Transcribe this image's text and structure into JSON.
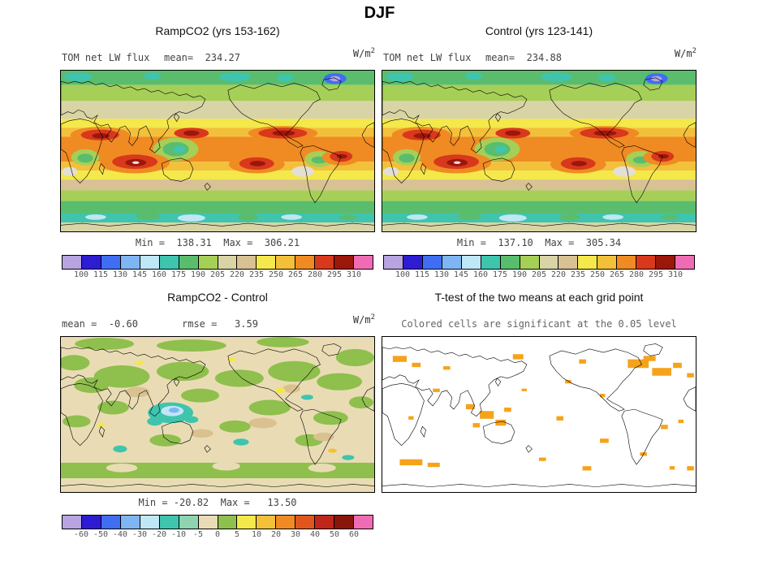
{
  "figure": {
    "title": "DJF",
    "units_base": "W/m",
    "units_exp": "2"
  },
  "panels": {
    "ramp": {
      "title": "RampCO2 (yrs 153-162)",
      "field_label": "TOM net LW flux",
      "mean_label": "mean=  234.27",
      "minmax": "Min =  138.31  Max =  306.21",
      "colorbar": {
        "labels": [
          "100",
          "115",
          "130",
          "145",
          "160",
          "175",
          "190",
          "205",
          "220",
          "235",
          "250",
          "265",
          "280",
          "295",
          "310"
        ],
        "colors": [
          "#b7a4e0",
          "#2d1cd1",
          "#3f6ef2",
          "#7fb5f2",
          "#bfe7f5",
          "#3fc4ae",
          "#5abd6e",
          "#a6cf58",
          "#d9d4a5",
          "#d8c193",
          "#f4e84a",
          "#f3c03a",
          "#ef8b22",
          "#d8381b",
          "#9a170a",
          "#ef6cb4"
        ]
      }
    },
    "control": {
      "title": "Control (yrs 123-141)",
      "field_label": "TOM net LW flux",
      "mean_label": "mean=  234.88",
      "minmax": "Min =  137.10  Max =  305.34",
      "colorbar": {
        "labels": [
          "100",
          "115",
          "130",
          "145",
          "160",
          "175",
          "190",
          "205",
          "220",
          "235",
          "250",
          "265",
          "280",
          "295",
          "310"
        ],
        "colors": [
          "#b7a4e0",
          "#2d1cd1",
          "#3f6ef2",
          "#7fb5f2",
          "#bfe7f5",
          "#3fc4ae",
          "#5abd6e",
          "#a6cf58",
          "#d9d4a5",
          "#d8c193",
          "#f4e84a",
          "#f3c03a",
          "#ef8b22",
          "#d8381b",
          "#9a170a",
          "#ef6cb4"
        ]
      }
    },
    "diff": {
      "title": "RampCO2 - Control",
      "mean_label": "mean =  -0.60",
      "rmse_label": "rmse =   3.59",
      "minmax": "Min = -20.82  Max =   13.50",
      "colorbar": {
        "labels": [
          "-60",
          "-50",
          "-40",
          "-30",
          "-20",
          "-10",
          "-5",
          "0",
          "5",
          "10",
          "20",
          "30",
          "40",
          "50",
          "60"
        ],
        "colors": [
          "#b7a4e0",
          "#2d1cd1",
          "#3f6ef2",
          "#7fb5f2",
          "#bfe7f5",
          "#3fc4ae",
          "#8fd4b0",
          "#e9dcb4",
          "#8fbf4d",
          "#f4e84a",
          "#f3c03a",
          "#ef8b22",
          "#e0561e",
          "#c0271a",
          "#8a150b",
          "#ef6cb4"
        ]
      }
    },
    "ttest": {
      "title": "T-test of the two means at each grid point",
      "subtitle": "Colored cells are significant at the 0.05 level",
      "significant_color": "#f5a31b"
    }
  },
  "chart_data": [
    {
      "type": "heatmap",
      "subtype": "global-latlon-map",
      "season": "DJF",
      "title": "RampCO2 (yrs 153-162)",
      "variable": "TOM net LW flux",
      "units": "W/m^2",
      "mean": 234.27,
      "min": 138.31,
      "max": 306.21,
      "levels": [
        100,
        115,
        130,
        145,
        160,
        175,
        190,
        205,
        220,
        235,
        250,
        265,
        280,
        295,
        310
      ],
      "palette": [
        "#b7a4e0",
        "#2d1cd1",
        "#3f6ef2",
        "#7fb5f2",
        "#bfe7f5",
        "#3fc4ae",
        "#5abd6e",
        "#a6cf58",
        "#d9d4a5",
        "#d8c193",
        "#f4e84a",
        "#f3c03a",
        "#ef8b22",
        "#d8381b",
        "#9a170a",
        "#ef6cb4"
      ]
    },
    {
      "type": "heatmap",
      "subtype": "global-latlon-map",
      "season": "DJF",
      "title": "Control (yrs 123-141)",
      "variable": "TOM net LW flux",
      "units": "W/m^2",
      "mean": 234.88,
      "min": 137.1,
      "max": 305.34,
      "levels": [
        100,
        115,
        130,
        145,
        160,
        175,
        190,
        205,
        220,
        235,
        250,
        265,
        280,
        295,
        310
      ],
      "palette": [
        "#b7a4e0",
        "#2d1cd1",
        "#3f6ef2",
        "#7fb5f2",
        "#bfe7f5",
        "#3fc4ae",
        "#5abd6e",
        "#a6cf58",
        "#d9d4a5",
        "#d8c193",
        "#f4e84a",
        "#f3c03a",
        "#ef8b22",
        "#d8381b",
        "#9a170a",
        "#ef6cb4"
      ]
    },
    {
      "type": "heatmap",
      "subtype": "global-latlon-difference-map",
      "season": "DJF",
      "title": "RampCO2 - Control",
      "variable": "TOM net LW flux difference",
      "units": "W/m^2",
      "mean": -0.6,
      "rmse": 3.59,
      "min": -20.82,
      "max": 13.5,
      "levels": [
        -60,
        -50,
        -40,
        -30,
        -20,
        -10,
        -5,
        0,
        5,
        10,
        20,
        30,
        40,
        50,
        60
      ],
      "palette": [
        "#b7a4e0",
        "#2d1cd1",
        "#3f6ef2",
        "#7fb5f2",
        "#bfe7f5",
        "#3fc4ae",
        "#8fd4b0",
        "#e9dcb4",
        "#8fbf4d",
        "#f4e84a",
        "#f3c03a",
        "#ef8b22",
        "#e0561e",
        "#c0271a",
        "#8a150b",
        "#ef6cb4"
      ]
    },
    {
      "type": "map",
      "subtype": "significance-mask",
      "season": "DJF",
      "title": "T-test of the two means at each grid point",
      "note": "Colored cells are significant at the 0.05 level",
      "significance_level": 0.05,
      "highlight_color": "#f5a31b"
    }
  ]
}
